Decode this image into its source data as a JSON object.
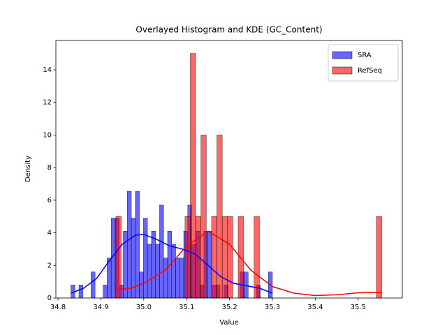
{
  "chart_data": {
    "type": "histogram",
    "title": "Overlayed Histogram and KDE (GC_Content)",
    "x_label": "Value",
    "y_label": "Density",
    "xlim": [
      34.795,
      35.603
    ],
    "xticks": [
      34.8,
      34.9,
      {
        "value": 35,
        "label": "35.0"
      },
      35.1,
      35.2,
      35.3,
      35.4,
      35.5
    ],
    "ylim": [
      0,
      15.8
    ],
    "yticks": [
      0,
      2,
      4,
      6,
      8,
      10,
      12,
      14
    ],
    "legend": "upper right",
    "series": [
      {
        "name": "SRA",
        "color": "#0000ff",
        "bins": [
          34.83,
          34.8394,
          34.8488,
          34.8582,
          34.8676,
          34.877,
          34.8864,
          34.8958,
          34.9052,
          34.9146,
          34.924,
          34.9334,
          34.9428,
          34.9522,
          34.9616,
          34.971,
          34.9804,
          34.9898,
          34.9992,
          35.0086,
          35.018,
          35.0274,
          35.0368,
          35.0462,
          35.0556,
          35.065,
          35.0744,
          35.0838,
          35.0932,
          35.1026,
          35.112,
          35.1214,
          35.1308,
          35.1402,
          35.1496,
          35.159,
          35.1684,
          35.1778,
          35.1872,
          35.1966,
          35.206,
          35.2154,
          35.2248,
          35.2342,
          35.2436,
          35.253,
          35.2624,
          35.2718,
          35.2812,
          35.2906,
          35.3
        ],
        "values": [
          0.8,
          0,
          0.8,
          0,
          0,
          1.6,
          0,
          0,
          0.8,
          2.45,
          4.9,
          4.9,
          0.8,
          4.1,
          6.55,
          4.9,
          6.55,
          1.6,
          4.9,
          3.3,
          4.1,
          3.3,
          5.7,
          2.45,
          4.1,
          3.3,
          2.45,
          2.45,
          4.1,
          5.7,
          3.3,
          4.1,
          0.8,
          4.1,
          4.1,
          0.8,
          0.8,
          0,
          0.8,
          0,
          0,
          0,
          1.6,
          1.6,
          0,
          0,
          0.8,
          0,
          0,
          1.6
        ],
        "kde": {
          "x": [
            34.83,
            34.86,
            34.89,
            34.92,
            34.95,
            34.98,
            35.0,
            35.03,
            35.06,
            35.09,
            35.12,
            35.15,
            35.18,
            35.21,
            35.24,
            35.27,
            35.3
          ],
          "y": [
            0.3,
            0.6,
            1.2,
            2.3,
            3.3,
            3.85,
            3.9,
            3.6,
            3.2,
            3.0,
            2.7,
            2.0,
            1.3,
            0.9,
            0.75,
            0.6,
            0.3
          ]
        }
      },
      {
        "name": "RefSeq",
        "color": "#ff0000",
        "bins": [
          34.935,
          34.9474,
          34.9598,
          34.9722,
          34.9846,
          34.997,
          35.0094,
          35.0218,
          35.0342,
          35.0466,
          35.059,
          35.0714,
          35.0838,
          35.0962,
          35.1086,
          35.121,
          35.1334,
          35.1458,
          35.1582,
          35.1706,
          35.183,
          35.1954,
          35.2078,
          35.2202,
          35.2326,
          35.245,
          35.2574,
          35.2698,
          35.2822,
          35.2946,
          35.307,
          35.3194,
          35.3318,
          35.3442,
          35.3566,
          35.369,
          35.3814,
          35.3938,
          35.4062,
          35.4186,
          35.431,
          35.4434,
          35.4558,
          35.4682,
          35.4806,
          35.493,
          35.5054,
          35.5178,
          35.5302,
          35.5426,
          35.555
        ],
        "values": [
          5,
          0,
          0,
          0,
          0,
          0,
          0,
          0,
          0,
          0,
          0,
          0,
          0,
          5,
          15,
          5,
          10,
          0,
          5,
          10,
          5,
          5,
          0,
          5,
          0,
          0,
          5,
          0,
          0,
          0,
          0,
          0,
          0,
          0,
          0,
          0,
          0,
          0,
          0,
          0,
          0,
          0,
          0,
          0,
          0,
          0,
          0,
          0,
          0,
          5
        ],
        "kde": {
          "x": [
            34.935,
            34.97,
            35.0,
            35.05,
            35.1,
            35.15,
            35.2,
            35.25,
            35.3,
            35.35,
            35.4,
            35.45,
            35.5,
            35.555
          ],
          "y": [
            0.5,
            0.6,
            0.9,
            1.7,
            3.2,
            4.1,
            3.3,
            1.7,
            0.7,
            0.3,
            0.15,
            0.2,
            0.32,
            0.35
          ]
        }
      }
    ]
  }
}
